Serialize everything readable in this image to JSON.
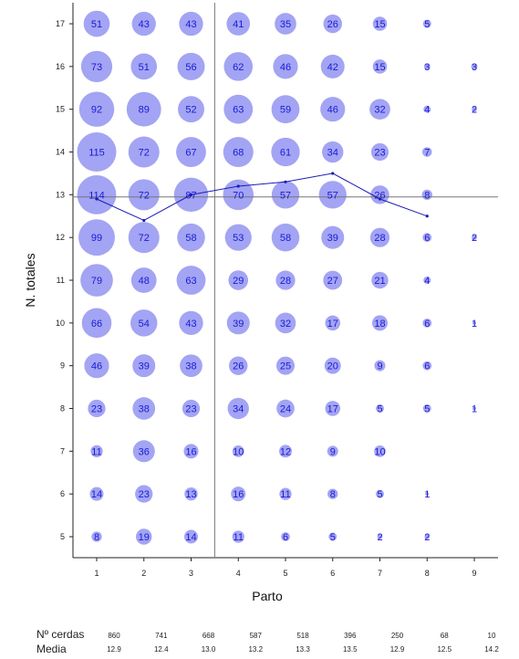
{
  "colors": {
    "bubble": "#a3a4f3",
    "bubble_text": "#1a1ad6",
    "mean_line": "#1c1cb4",
    "ref_line": "#777777",
    "axis": "#222222"
  },
  "chart_data": {
    "type": "scatter",
    "xlabel": "Parto",
    "ylabel": "N. totales",
    "x_ticks": [
      1,
      2,
      3,
      4,
      5,
      6,
      7,
      8,
      9
    ],
    "y_ticks": [
      5,
      6,
      7,
      8,
      9,
      10,
      11,
      12,
      13,
      14,
      15,
      16,
      17
    ],
    "xlim": [
      0.5,
      9.5
    ],
    "ylim": [
      4.5,
      17.3
    ],
    "reference_lines": {
      "vertical_x": 3.5,
      "horizontal_y": 12.95
    },
    "bubbles": [
      {
        "x": 1,
        "y": 17,
        "n": 51
      },
      {
        "x": 2,
        "y": 17,
        "n": 43
      },
      {
        "x": 3,
        "y": 17,
        "n": 43
      },
      {
        "x": 4,
        "y": 17,
        "n": 41
      },
      {
        "x": 5,
        "y": 17,
        "n": 35
      },
      {
        "x": 6,
        "y": 17,
        "n": 26
      },
      {
        "x": 7,
        "y": 17,
        "n": 15
      },
      {
        "x": 8,
        "y": 17,
        "n": 5
      },
      {
        "x": 1,
        "y": 16,
        "n": 73
      },
      {
        "x": 2,
        "y": 16,
        "n": 51
      },
      {
        "x": 3,
        "y": 16,
        "n": 56
      },
      {
        "x": 4,
        "y": 16,
        "n": 62
      },
      {
        "x": 5,
        "y": 16,
        "n": 46
      },
      {
        "x": 6,
        "y": 16,
        "n": 42
      },
      {
        "x": 7,
        "y": 16,
        "n": 15
      },
      {
        "x": 8,
        "y": 16,
        "n": 3
      },
      {
        "x": 9,
        "y": 16,
        "n": 3
      },
      {
        "x": 1,
        "y": 15,
        "n": 92
      },
      {
        "x": 2,
        "y": 15,
        "n": 89
      },
      {
        "x": 3,
        "y": 15,
        "n": 52
      },
      {
        "x": 4,
        "y": 15,
        "n": 63
      },
      {
        "x": 5,
        "y": 15,
        "n": 59
      },
      {
        "x": 6,
        "y": 15,
        "n": 46
      },
      {
        "x": 7,
        "y": 15,
        "n": 32
      },
      {
        "x": 8,
        "y": 15,
        "n": 4
      },
      {
        "x": 9,
        "y": 15,
        "n": 2
      },
      {
        "x": 1,
        "y": 14,
        "n": 115
      },
      {
        "x": 2,
        "y": 14,
        "n": 72
      },
      {
        "x": 3,
        "y": 14,
        "n": 67
      },
      {
        "x": 4,
        "y": 14,
        "n": 68
      },
      {
        "x": 5,
        "y": 14,
        "n": 61
      },
      {
        "x": 6,
        "y": 14,
        "n": 34
      },
      {
        "x": 7,
        "y": 14,
        "n": 23
      },
      {
        "x": 8,
        "y": 14,
        "n": 7
      },
      {
        "x": 1,
        "y": 13,
        "n": 114
      },
      {
        "x": 2,
        "y": 13,
        "n": 72
      },
      {
        "x": 3,
        "y": 13,
        "n": 87
      },
      {
        "x": 4,
        "y": 13,
        "n": 70
      },
      {
        "x": 5,
        "y": 13,
        "n": 57
      },
      {
        "x": 6,
        "y": 13,
        "n": 57
      },
      {
        "x": 7,
        "y": 13,
        "n": 26
      },
      {
        "x": 8,
        "y": 13,
        "n": 8
      },
      {
        "x": 1,
        "y": 12,
        "n": 99
      },
      {
        "x": 2,
        "y": 12,
        "n": 72
      },
      {
        "x": 3,
        "y": 12,
        "n": 58
      },
      {
        "x": 4,
        "y": 12,
        "n": 53
      },
      {
        "x": 5,
        "y": 12,
        "n": 58
      },
      {
        "x": 6,
        "y": 12,
        "n": 39
      },
      {
        "x": 7,
        "y": 12,
        "n": 28
      },
      {
        "x": 8,
        "y": 12,
        "n": 6
      },
      {
        "x": 9,
        "y": 12,
        "n": 2
      },
      {
        "x": 1,
        "y": 11,
        "n": 79
      },
      {
        "x": 2,
        "y": 11,
        "n": 48
      },
      {
        "x": 3,
        "y": 11,
        "n": 63
      },
      {
        "x": 4,
        "y": 11,
        "n": 29
      },
      {
        "x": 5,
        "y": 11,
        "n": 28
      },
      {
        "x": 6,
        "y": 11,
        "n": 27
      },
      {
        "x": 7,
        "y": 11,
        "n": 21
      },
      {
        "x": 8,
        "y": 11,
        "n": 4
      },
      {
        "x": 1,
        "y": 10,
        "n": 66
      },
      {
        "x": 2,
        "y": 10,
        "n": 54
      },
      {
        "x": 3,
        "y": 10,
        "n": 43
      },
      {
        "x": 4,
        "y": 10,
        "n": 39
      },
      {
        "x": 5,
        "y": 10,
        "n": 32
      },
      {
        "x": 6,
        "y": 10,
        "n": 17
      },
      {
        "x": 7,
        "y": 10,
        "n": 18
      },
      {
        "x": 8,
        "y": 10,
        "n": 6
      },
      {
        "x": 9,
        "y": 10,
        "n": 1
      },
      {
        "x": 1,
        "y": 9,
        "n": 46
      },
      {
        "x": 2,
        "y": 9,
        "n": 39
      },
      {
        "x": 3,
        "y": 9,
        "n": 38
      },
      {
        "x": 4,
        "y": 9,
        "n": 26
      },
      {
        "x": 5,
        "y": 9,
        "n": 25
      },
      {
        "x": 6,
        "y": 9,
        "n": 20
      },
      {
        "x": 7,
        "y": 9,
        "n": 9
      },
      {
        "x": 8,
        "y": 9,
        "n": 6
      },
      {
        "x": 1,
        "y": 8,
        "n": 23
      },
      {
        "x": 2,
        "y": 8,
        "n": 38
      },
      {
        "x": 3,
        "y": 8,
        "n": 23
      },
      {
        "x": 4,
        "y": 8,
        "n": 34
      },
      {
        "x": 5,
        "y": 8,
        "n": 24
      },
      {
        "x": 6,
        "y": 8,
        "n": 17
      },
      {
        "x": 7,
        "y": 8,
        "n": 5
      },
      {
        "x": 8,
        "y": 8,
        "n": 5
      },
      {
        "x": 9,
        "y": 8,
        "n": 1
      },
      {
        "x": 1,
        "y": 7,
        "n": 11
      },
      {
        "x": 2,
        "y": 7,
        "n": 36
      },
      {
        "x": 3,
        "y": 7,
        "n": 16
      },
      {
        "x": 4,
        "y": 7,
        "n": 10
      },
      {
        "x": 5,
        "y": 7,
        "n": 12
      },
      {
        "x": 6,
        "y": 7,
        "n": 9
      },
      {
        "x": 7,
        "y": 7,
        "n": 10
      },
      {
        "x": 1,
        "y": 6,
        "n": 14
      },
      {
        "x": 2,
        "y": 6,
        "n": 23
      },
      {
        "x": 3,
        "y": 6,
        "n": 13
      },
      {
        "x": 4,
        "y": 6,
        "n": 16
      },
      {
        "x": 5,
        "y": 6,
        "n": 11
      },
      {
        "x": 6,
        "y": 6,
        "n": 8
      },
      {
        "x": 7,
        "y": 6,
        "n": 5
      },
      {
        "x": 8,
        "y": 6,
        "n": 1
      },
      {
        "x": 1,
        "y": 5,
        "n": 8
      },
      {
        "x": 2,
        "y": 5,
        "n": 19
      },
      {
        "x": 3,
        "y": 5,
        "n": 14
      },
      {
        "x": 4,
        "y": 5,
        "n": 11
      },
      {
        "x": 5,
        "y": 5,
        "n": 6
      },
      {
        "x": 6,
        "y": 5,
        "n": 5
      },
      {
        "x": 7,
        "y": 5,
        "n": 2
      },
      {
        "x": 8,
        "y": 5,
        "n": 2
      }
    ],
    "mean_line": {
      "x": [
        1,
        2,
        3,
        4,
        5,
        6,
        7,
        8
      ],
      "y": [
        12.9,
        12.4,
        13.0,
        13.2,
        13.3,
        13.5,
        12.9,
        12.5
      ]
    },
    "footer": {
      "count_label": "Nº cerdas",
      "mean_label": "Media",
      "x": [
        1,
        2,
        3,
        4,
        5,
        6,
        7,
        8,
        9
      ],
      "counts": [
        "860",
        "741",
        "668",
        "587",
        "518",
        "396",
        "250",
        "68",
        "10"
      ],
      "means": [
        "12.9",
        "12.4",
        "13.0",
        "13.2",
        "13.3",
        "13.5",
        "12.9",
        "12.5",
        "14.2"
      ]
    }
  }
}
